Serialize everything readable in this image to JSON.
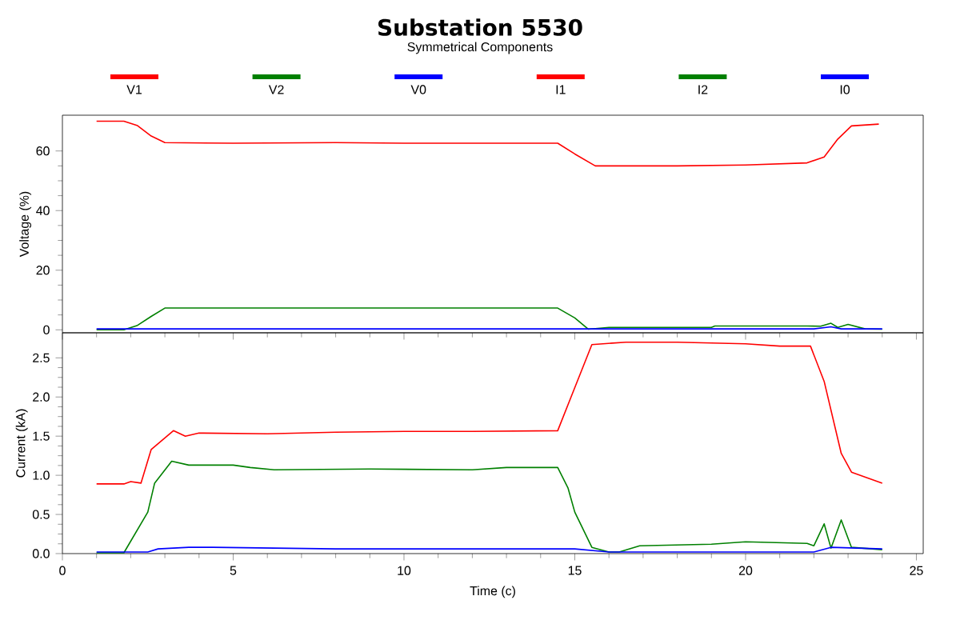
{
  "chart_data": [
    {
      "type": "line",
      "title": "Substation 5530",
      "subtitle": "Symmetrical Components",
      "ylabel": "Voltage (%)",
      "legend": "top",
      "tick_labels": "y",
      "xlim": [
        0,
        25.2
      ],
      "xticks": [
        0,
        5,
        10,
        15,
        20,
        25
      ],
      "ylim": [
        -1,
        72
      ],
      "yticks": [
        0,
        20,
        40,
        60
      ],
      "series": [
        {
          "name": "V1",
          "color": "#ff0000",
          "x": [
            1,
            1.8,
            2.2,
            2.6,
            3.0,
            5,
            8,
            10,
            12,
            14.5,
            15.0,
            15.6,
            18,
            20,
            21.8,
            22.3,
            22.7,
            23.1,
            23.9
          ],
          "values": [
            70,
            70,
            68.5,
            65,
            62.8,
            62.6,
            62.8,
            62.6,
            62.6,
            62.6,
            59,
            55,
            55,
            55.3,
            56,
            58,
            64,
            68.4,
            69
          ]
        },
        {
          "name": "V2",
          "color": "#008000",
          "x": [
            1,
            1.8,
            2.2,
            2.6,
            3.0,
            8,
            14.5,
            15.0,
            15.4,
            16,
            19,
            19.1,
            21.8,
            22.2,
            22.5,
            22.7,
            23.0,
            23.5,
            24
          ],
          "values": [
            0,
            0,
            1.5,
            4.5,
            7.3,
            7.3,
            7.3,
            4,
            0.2,
            0.8,
            0.8,
            1.3,
            1.3,
            1.2,
            2.2,
            0.8,
            1.8,
            0.3,
            0.2
          ]
        },
        {
          "name": "V0",
          "color": "#0000ff",
          "x": [
            1,
            10,
            22,
            22.5,
            22.8,
            24
          ],
          "values": [
            0.3,
            0.3,
            0.3,
            1,
            0.3,
            0.3
          ]
        }
      ]
    },
    {
      "type": "line",
      "xlabel": "Time (c)",
      "ylabel": "Current (kA)",
      "legend": "top",
      "xlim": [
        0,
        25.2
      ],
      "xticks": [
        0,
        5,
        10,
        15,
        20,
        25
      ],
      "ylim": [
        0,
        2.82
      ],
      "yticks": [
        {
          "value": 0,
          "label": "0.0"
        },
        {
          "value": 0.5,
          "label": "0.5"
        },
        {
          "value": 1,
          "label": "1.0"
        },
        {
          "value": 1.5,
          "label": "1.5"
        },
        {
          "value": 2,
          "label": "2.0"
        },
        {
          "value": 2.5,
          "label": "2.5"
        }
      ],
      "series": [
        {
          "name": "I1",
          "color": "#ff0000",
          "x": [
            1,
            1.8,
            2.0,
            2.3,
            2.6,
            3.25,
            3.6,
            4,
            6,
            8,
            10,
            12,
            14.5,
            15.5,
            16.5,
            18,
            20,
            21,
            21.9,
            22.3,
            22.8,
            23.1,
            24
          ],
          "values": [
            0.89,
            0.89,
            0.92,
            0.9,
            1.33,
            1.57,
            1.5,
            1.54,
            1.53,
            1.55,
            1.56,
            1.56,
            1.57,
            2.67,
            2.7,
            2.7,
            2.68,
            2.65,
            2.65,
            2.2,
            1.28,
            1.04,
            0.9
          ]
        },
        {
          "name": "I2",
          "color": "#008000",
          "x": [
            1,
            1.8,
            2.5,
            2.7,
            3.2,
            3.7,
            5,
            5.5,
            6.2,
            9,
            12,
            13,
            14.5,
            14.8,
            15.0,
            15.5,
            16,
            16.3,
            16.9,
            19,
            20,
            21.8,
            22.0,
            22.3,
            22.5,
            22.8,
            23.1,
            24
          ],
          "values": [
            0.01,
            0.01,
            0.53,
            0.9,
            1.18,
            1.13,
            1.13,
            1.1,
            1.07,
            1.08,
            1.07,
            1.1,
            1.1,
            0.84,
            0.53,
            0.08,
            0.02,
            0.02,
            0.1,
            0.12,
            0.15,
            0.13,
            0.1,
            0.38,
            0.07,
            0.43,
            0.08,
            0.05
          ]
        },
        {
          "name": "I0",
          "color": "#0000ff",
          "x": [
            1,
            2.5,
            2.8,
            3.7,
            4.4,
            8,
            15,
            16,
            22,
            22.5,
            24
          ],
          "values": [
            0.02,
            0.02,
            0.06,
            0.08,
            0.08,
            0.06,
            0.06,
            0.02,
            0.02,
            0.08,
            0.06
          ]
        }
      ]
    }
  ]
}
